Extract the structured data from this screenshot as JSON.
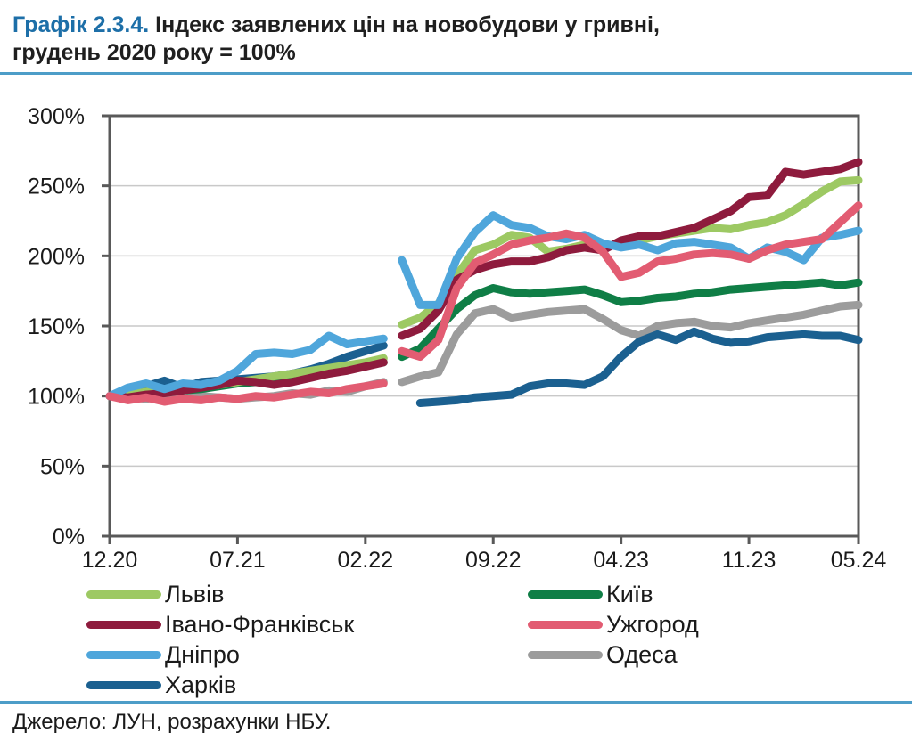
{
  "title": {
    "number": "Графік 2.3.4.",
    "rest_line1": " Індекс заявлених цін на новобудови у гривні,",
    "line2": "грудень 2020 року = 100%"
  },
  "source": "Джерело: ЛУН, розрахунки НБУ.",
  "colors": {
    "title_accent": "#1d6fa8",
    "separator": "#4d9dc8",
    "frame": "#595959",
    "gridline": "#c9c9c9",
    "text": "#1a1a1a"
  },
  "chart_data": {
    "type": "line",
    "title": "Індекс заявлених цін на новобудови у гривні, грудень 2020 року = 100%",
    "x_tick_labels": [
      "12.20",
      "07.21",
      "02.22",
      "09.22",
      "04.23",
      "11.23",
      "05.24"
    ],
    "x_tick_months": [
      0,
      7,
      14,
      21,
      28,
      35,
      41
    ],
    "months_total": 41,
    "gap_break_after_index": 15,
    "y_tick_labels": [
      "0%",
      "50%",
      "100%",
      "150%",
      "200%",
      "250%",
      "300%"
    ],
    "y_tick_values": [
      0,
      50,
      100,
      150,
      200,
      250,
      300
    ],
    "ylim": [
      0,
      300
    ],
    "grid": "horizontal",
    "legend_position": "bottom",
    "legend_columns": [
      [
        "Львів",
        "Івано-Франківськ",
        "Дніпро",
        "Харків"
      ],
      [
        "Київ",
        "Ужгород",
        "Одеса"
      ]
    ],
    "z_order": [
      "Одеса",
      "Харків",
      "Київ",
      "Львів",
      "Івано-Франківськ",
      "Дніпро",
      "Ужгород"
    ],
    "series": [
      {
        "name": "Львів",
        "color": "#9dc963",
        "values": [
          100,
          101,
          103,
          104,
          105,
          107,
          108,
          110,
          112,
          114,
          116,
          118,
          120,
          122,
          124,
          127,
          151,
          156,
          166,
          186,
          204,
          208,
          215,
          213,
          203,
          205,
          208,
          206,
          209,
          211,
          214,
          216,
          218,
          220,
          219,
          222,
          224,
          229,
          237,
          246,
          253,
          254
        ]
      },
      {
        "name": "Київ",
        "color": "#0f7e46",
        "values": [
          100,
          100,
          102,
          103,
          104,
          105,
          107,
          109,
          110,
          112,
          113,
          115,
          117,
          119,
          122,
          124,
          128,
          134,
          148,
          162,
          172,
          177,
          174,
          173,
          174,
          175,
          176,
          172,
          167,
          168,
          170,
          171,
          173,
          174,
          176,
          177,
          178,
          179,
          180,
          181,
          179,
          181
        ]
      },
      {
        "name": "Івано-Франківськ",
        "color": "#8e1b3d",
        "values": [
          100,
          99,
          101,
          102,
          104,
          106,
          108,
          111,
          110,
          108,
          110,
          113,
          116,
          118,
          121,
          124,
          143,
          148,
          161,
          183,
          190,
          194,
          196,
          196,
          199,
          204,
          206,
          204,
          211,
          214,
          214,
          217,
          220,
          226,
          232,
          242,
          243,
          260,
          258,
          260,
          262,
          267
        ]
      },
      {
        "name": "Ужгород",
        "color": "#e25c72",
        "values": [
          100,
          97,
          99,
          96,
          98,
          97,
          99,
          98,
          100,
          99,
          101,
          103,
          102,
          105,
          107,
          109,
          132,
          128,
          140,
          177,
          195,
          201,
          208,
          211,
          213,
          216,
          213,
          203,
          185,
          188,
          196,
          198,
          201,
          202,
          201,
          198,
          204,
          208,
          210,
          212,
          224,
          236
        ]
      },
      {
        "name": "Дніпро",
        "color": "#4fa6db",
        "values": [
          100,
          106,
          109,
          105,
          109,
          108,
          111,
          118,
          130,
          131,
          130,
          133,
          143,
          137,
          139,
          141,
          197,
          165,
          165,
          198,
          217,
          229,
          222,
          220,
          214,
          212,
          215,
          209,
          206,
          208,
          204,
          209,
          210,
          208,
          206,
          198,
          206,
          203,
          197,
          213,
          215,
          218
        ]
      },
      {
        "name": "Одеса",
        "color": "#9c9c9c",
        "values": [
          100,
          99,
          98,
          100,
          98,
          100,
          99,
          98,
          99,
          100,
          102,
          101,
          104,
          103,
          107,
          110,
          110,
          114,
          117,
          144,
          159,
          162,
          156,
          158,
          160,
          161,
          162,
          155,
          147,
          143,
          150,
          152,
          153,
          150,
          149,
          152,
          154,
          156,
          158,
          161,
          164,
          165
        ]
      },
      {
        "name": "Харків",
        "color": "#1b6090",
        "values": [
          100,
          103,
          107,
          111,
          106,
          110,
          111,
          112,
          113,
          114,
          116,
          119,
          123,
          128,
          132,
          136,
          null,
          95,
          96,
          97,
          99,
          100,
          101,
          107,
          109,
          109,
          108,
          114,
          128,
          139,
          144,
          140,
          146,
          141,
          138,
          139,
          142,
          143,
          144,
          143,
          143,
          140
        ]
      }
    ]
  }
}
